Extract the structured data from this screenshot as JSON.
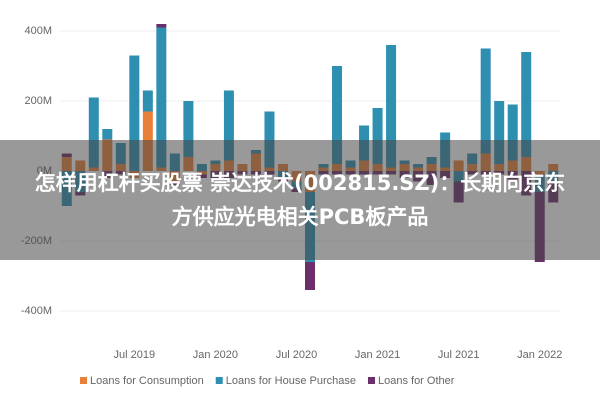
{
  "chart_data": {
    "type": "stacked_bar",
    "categories": [
      null,
      null,
      null,
      null,
      null,
      "Jul 2019",
      null,
      null,
      null,
      null,
      null,
      "Jan 2020",
      null,
      null,
      null,
      null,
      null,
      "Jul 2020",
      null,
      null,
      null,
      null,
      null,
      "Jan 2021",
      null,
      null,
      null,
      null,
      null,
      "Jul 2021",
      null,
      null,
      null,
      null,
      null,
      "Jan 2022",
      null
    ],
    "series": [
      {
        "name": "Loans for Consumption",
        "color": "#e8803a",
        "values": [
          40,
          30,
          10,
          90,
          20,
          -20,
          170,
          10,
          -30,
          40,
          -10,
          20,
          30,
          20,
          50,
          10,
          20,
          -30,
          -60,
          10,
          20,
          10,
          30,
          20,
          10,
          20,
          10,
          20,
          10,
          30,
          20,
          50,
          20,
          30,
          40,
          -10,
          20
        ]
      },
      {
        "name": "Loans for House Purchase",
        "color": "#2e8fb0",
        "values": [
          -100,
          -60,
          200,
          30,
          60,
          330,
          60,
          400,
          50,
          160,
          20,
          10,
          200,
          0,
          10,
          160,
          -20,
          -20,
          -200,
          10,
          280,
          20,
          100,
          160,
          350,
          10,
          10,
          20,
          100,
          -30,
          30,
          300,
          180,
          160,
          300,
          -50,
          -30
        ]
      },
      {
        "name": "Loans for Other",
        "color": "#6b2f6b",
        "values": [
          10,
          -10,
          0,
          -20,
          -10,
          0,
          0,
          10,
          -10,
          0,
          -10,
          -20,
          -20,
          -10,
          -10,
          -10,
          -10,
          -10,
          -80,
          -10,
          -10,
          -10,
          -10,
          -10,
          -10,
          -20,
          -30,
          -40,
          -20,
          -60,
          -10,
          -10,
          -10,
          -30,
          -70,
          -200,
          -60
        ]
      }
    ],
    "ylim": [
      -480,
      480
    ],
    "yticks": [
      {
        "value": -400,
        "label": "-400M"
      },
      {
        "value": -200,
        "label": "-200M"
      },
      {
        "value": 0,
        "label": "0M"
      },
      {
        "value": 200,
        "label": "200M"
      },
      {
        "value": 400,
        "label": "400M"
      }
    ],
    "grid": true
  },
  "banner": {
    "title": "怎样用杠杆买股票 崇达技术(002815.SZ)：长期向京东方供应光电相关PCB板产品"
  }
}
